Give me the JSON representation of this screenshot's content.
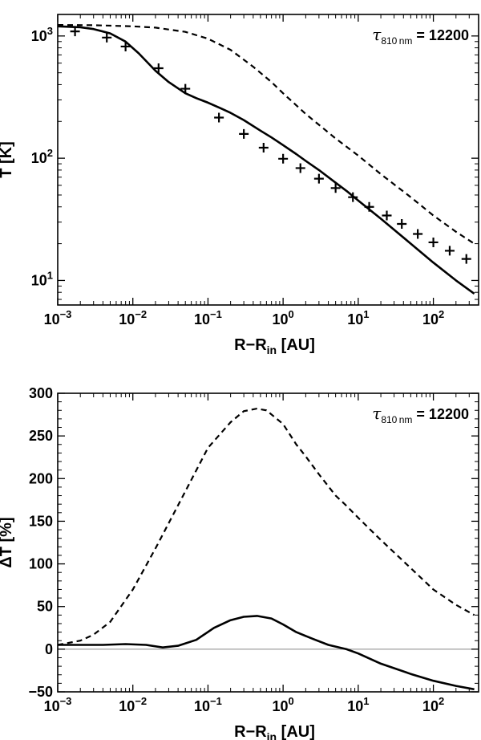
{
  "chart_data": [
    {
      "type": "line",
      "ylabel": "T [K]",
      "xlabel": "R−R_in [AU]",
      "xlabel_main": "R−R",
      "xlabel_sub": "in",
      "xlabel_tail": " [AU]",
      "xscale": "log",
      "yscale": "log",
      "xlim": [
        0.001,
        400
      ],
      "ylim": [
        6.3,
        1500
      ],
      "annotation": {
        "symbol": "τ",
        "sub": "810 nm",
        "text": " = 12200"
      },
      "x_ticks": [
        {
          "value": 0.001,
          "base": "10",
          "exp": "−3"
        },
        {
          "value": 0.01,
          "base": "10",
          "exp": "−2"
        },
        {
          "value": 0.1,
          "base": "10",
          "exp": "−1"
        },
        {
          "value": 1,
          "base": "10",
          "exp": "0"
        },
        {
          "value": 10,
          "base": "10",
          "exp": "1"
        },
        {
          "value": 100,
          "base": "10",
          "exp": "2"
        }
      ],
      "y_ticks": [
        {
          "value": 10,
          "base": "10",
          "exp": "1"
        },
        {
          "value": 100,
          "base": "10",
          "exp": "2"
        },
        {
          "value": 1000,
          "base": "10",
          "exp": "3"
        }
      ],
      "series": [
        {
          "style": "solid",
          "x": [
            0.001,
            0.002,
            0.003,
            0.005,
            0.008,
            0.012,
            0.02,
            0.03,
            0.05,
            0.07,
            0.1,
            0.15,
            0.2,
            0.3,
            0.5,
            0.7,
            1,
            1.5,
            2,
            3,
            5,
            7,
            10,
            20,
            30,
            50,
            100,
            200,
            350
          ],
          "y": [
            1200,
            1180,
            1140,
            1050,
            900,
            720,
            520,
            420,
            340,
            310,
            285,
            255,
            235,
            205,
            168,
            148,
            128,
            108,
            95,
            80,
            63,
            54,
            45,
            32,
            26,
            20,
            14,
            10,
            7.8
          ]
        },
        {
          "style": "dashed",
          "x": [
            0.001,
            0.003,
            0.01,
            0.02,
            0.05,
            0.1,
            0.2,
            0.4,
            0.7,
            1,
            2,
            5,
            10,
            20,
            50,
            100,
            200,
            350
          ],
          "y": [
            1230,
            1225,
            1200,
            1170,
            1080,
            950,
            770,
            560,
            420,
            340,
            230,
            145,
            105,
            74,
            48,
            34,
            25,
            20
          ]
        },
        {
          "style": "markers",
          "x": [
            0.0017,
            0.0045,
            0.008,
            0.022,
            0.05,
            0.14,
            0.3,
            0.55,
            1,
            1.7,
            3,
            5,
            8.5,
            14,
            24,
            38,
            62,
            100,
            165,
            275
          ],
          "y": [
            1090,
            970,
            820,
            545,
            370,
            215,
            158,
            122,
            99,
            83,
            68,
            57,
            48,
            40,
            34,
            29,
            24,
            20.5,
            17.5,
            15
          ]
        }
      ]
    },
    {
      "type": "line",
      "ylabel": "ΔT [%]",
      "xlabel": "R−R_in [AU]",
      "xlabel_main": "R−R",
      "xlabel_sub": "in",
      "xlabel_tail": " [AU]",
      "xscale": "log",
      "yscale": "linear",
      "xlim": [
        0.001,
        400
      ],
      "ylim": [
        -50,
        300
      ],
      "annotation": {
        "symbol": "τ",
        "sub": "810 nm",
        "text": " = 12200"
      },
      "x_ticks": [
        {
          "value": 0.001,
          "base": "10",
          "exp": "−3"
        },
        {
          "value": 0.01,
          "base": "10",
          "exp": "−2"
        },
        {
          "value": 0.1,
          "base": "10",
          "exp": "−1"
        },
        {
          "value": 1,
          "base": "10",
          "exp": "0"
        },
        {
          "value": 10,
          "base": "10",
          "exp": "1"
        },
        {
          "value": 100,
          "base": "10",
          "exp": "2"
        }
      ],
      "y_ticks": [
        {
          "value": -50,
          "label": "−50"
        },
        {
          "value": 0,
          "label": "0"
        },
        {
          "value": 50,
          "label": "50"
        },
        {
          "value": 100,
          "label": "100"
        },
        {
          "value": 150,
          "label": "150"
        },
        {
          "value": 200,
          "label": "200"
        },
        {
          "value": 250,
          "label": "250"
        },
        {
          "value": 300,
          "label": "300"
        }
      ],
      "zero_line": true,
      "series": [
        {
          "style": "solid",
          "x": [
            0.001,
            0.002,
            0.004,
            0.008,
            0.015,
            0.025,
            0.04,
            0.07,
            0.12,
            0.2,
            0.3,
            0.45,
            0.7,
            1,
            1.5,
            2.5,
            4,
            7,
            10,
            20,
            50,
            100,
            200,
            350
          ],
          "y": [
            5,
            5,
            5,
            6,
            5,
            2,
            4,
            11,
            25,
            34,
            38,
            39,
            36,
            29,
            20,
            12,
            5,
            0,
            -5,
            -17,
            -29,
            -37,
            -43,
            -47
          ]
        },
        {
          "style": "dashed",
          "x": [
            0.001,
            0.002,
            0.003,
            0.005,
            0.01,
            0.02,
            0.05,
            0.1,
            0.2,
            0.3,
            0.45,
            0.6,
            1,
            1.5,
            2,
            3,
            5,
            7,
            10,
            20,
            50,
            100,
            200,
            350
          ],
          "y": [
            5,
            10,
            17,
            32,
            70,
            118,
            185,
            236,
            266,
            279,
            282,
            280,
            264,
            240,
            226,
            205,
            180,
            168,
            154,
            128,
            95,
            70,
            52,
            40
          ]
        }
      ]
    }
  ]
}
